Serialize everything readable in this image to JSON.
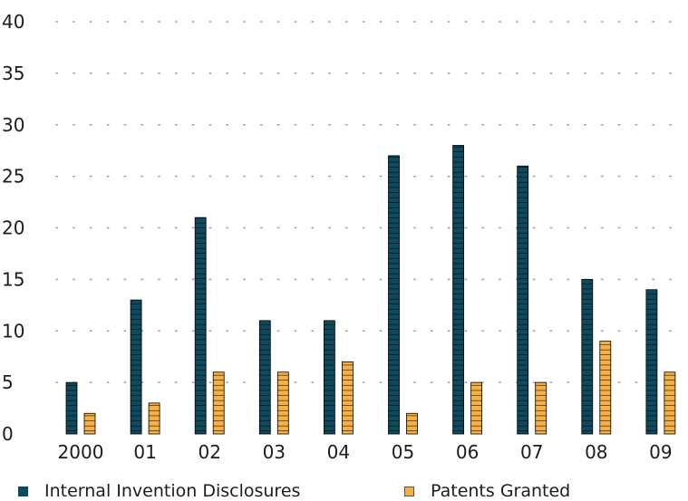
{
  "chart_data": {
    "type": "bar",
    "categories": [
      "2000",
      "01",
      "02",
      "03",
      "04",
      "05",
      "06",
      "07",
      "08",
      "09"
    ],
    "series": [
      {
        "name": "Internal Invention Disclosures",
        "color": "#0e4a5e",
        "values": [
          5,
          13,
          21,
          11,
          11,
          27,
          28,
          26,
          15,
          14
        ]
      },
      {
        "name": "Patents Granted",
        "color": "#f6b043",
        "values": [
          2,
          3,
          6,
          6,
          7,
          2,
          5,
          5,
          9,
          6
        ]
      }
    ],
    "y_ticks": [
      "0",
      "5",
      "10",
      "15",
      "20",
      "25",
      "30",
      "35",
      "40"
    ],
    "ylim": [
      0,
      40
    ],
    "grid": "dotted",
    "legend_position": "bottom"
  }
}
